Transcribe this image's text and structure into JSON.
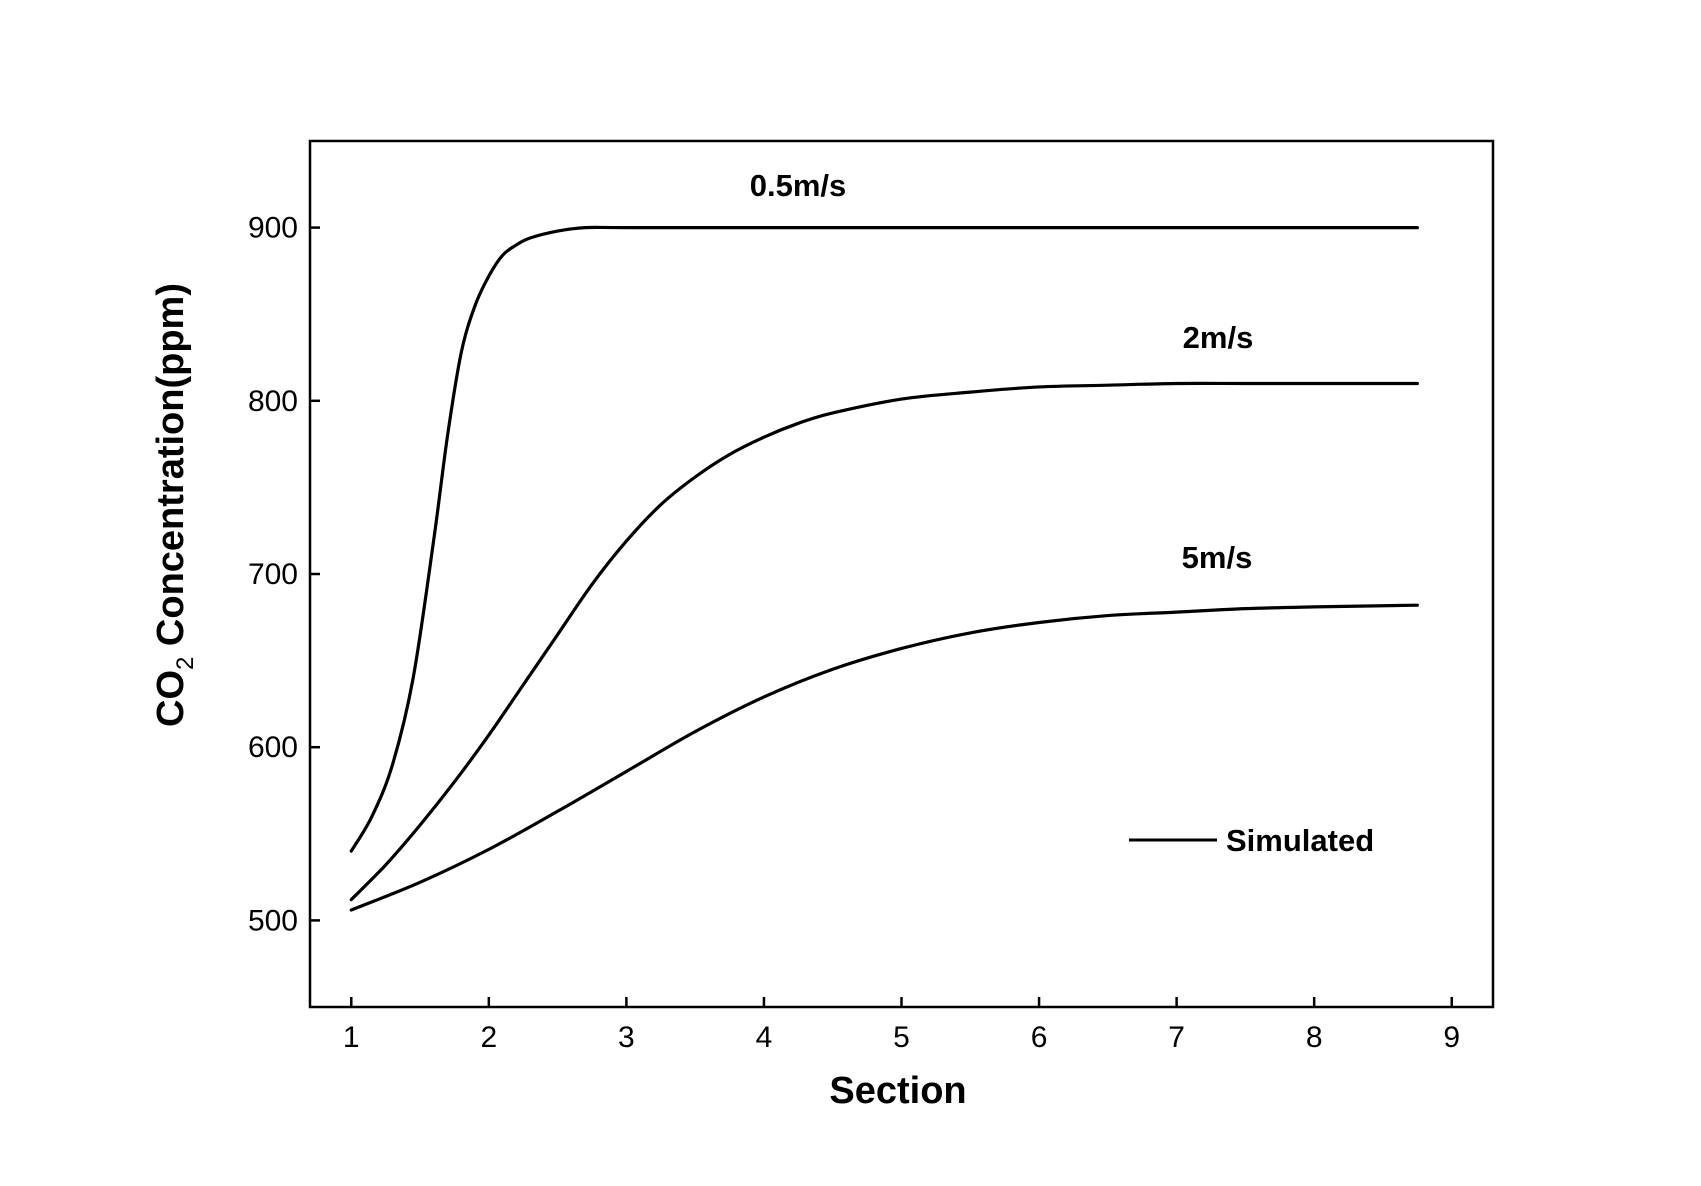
{
  "chart_data": {
    "type": "line",
    "xlabel": "Section",
    "ylabel": {
      "prefix": "CO",
      "subscript": "2",
      "suffix": " Concentration(ppm)"
    },
    "xlim": [
      0.7,
      9.3
    ],
    "ylim": [
      450,
      950
    ],
    "xticks": [
      1,
      2,
      3,
      4,
      5,
      6,
      7,
      8,
      9
    ],
    "yticks": [
      500,
      600,
      700,
      800,
      900
    ],
    "grid": false,
    "line_color": "#000000",
    "legend": {
      "position": "bottom-right",
      "entries": [
        "Simulated"
      ]
    },
    "series": [
      {
        "name": "0.5m/s",
        "x": [
          1.0,
          1.15,
          1.3,
          1.45,
          1.6,
          1.7,
          1.8,
          1.9,
          2.0,
          2.1,
          2.2,
          2.3,
          2.5,
          2.7,
          3.0,
          4.0,
          5.0,
          6.0,
          7.0,
          8.0,
          8.75
        ],
        "y": [
          540,
          560,
          590,
          640,
          720,
          780,
          828,
          855,
          872,
          884,
          890,
          894,
          898,
          900,
          900,
          900,
          900,
          900,
          900,
          900,
          900
        ]
      },
      {
        "name": "2m/s",
        "x": [
          1.0,
          1.25,
          1.5,
          1.75,
          2.0,
          2.25,
          2.5,
          2.75,
          3.0,
          3.25,
          3.5,
          3.75,
          4.0,
          4.25,
          4.5,
          5.0,
          5.5,
          6.0,
          6.5,
          7.0,
          7.5,
          8.0,
          8.75
        ],
        "y": [
          512,
          532,
          555,
          580,
          607,
          636,
          665,
          694,
          719,
          740,
          756,
          769,
          779,
          787,
          793,
          801,
          805,
          808,
          809,
          810,
          810,
          810,
          810
        ]
      },
      {
        "name": "5m/s",
        "x": [
          1.0,
          1.5,
          2.0,
          2.5,
          3.0,
          3.5,
          4.0,
          4.5,
          5.0,
          5.5,
          6.0,
          6.5,
          7.0,
          7.5,
          8.0,
          8.75
        ],
        "y": [
          506,
          522,
          541,
          563,
          586,
          609,
          629,
          645,
          657,
          666,
          672,
          676,
          678,
          680,
          681,
          682
        ]
      }
    ]
  }
}
